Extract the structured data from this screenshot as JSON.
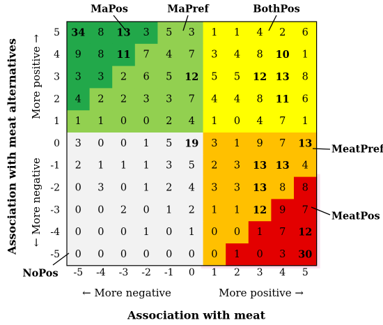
{
  "chart_data": {
    "type": "heatmap",
    "x_values": [
      -5,
      -4,
      -3,
      -2,
      -1,
      0,
      1,
      2,
      3,
      4,
      5
    ],
    "y_values": [
      5,
      4,
      3,
      2,
      1,
      0,
      -1,
      -2,
      -3,
      -4,
      -5
    ],
    "xlabel": "Association with meat",
    "ylabel": "Association with meat alternatives",
    "x_direction_labels": {
      "negative": "← More negative",
      "positive": "More positive →"
    },
    "y_direction_labels": {
      "negative": "← More negative",
      "positive": "More positive →"
    },
    "values": [
      [
        34,
        8,
        13,
        3,
        5,
        3,
        1,
        1,
        4,
        2,
        6
      ],
      [
        9,
        8,
        11,
        7,
        4,
        7,
        3,
        4,
        8,
        10,
        1
      ],
      [
        3,
        3,
        2,
        6,
        5,
        12,
        5,
        5,
        12,
        13,
        8
      ],
      [
        4,
        2,
        2,
        3,
        3,
        7,
        4,
        4,
        8,
        11,
        6
      ],
      [
        1,
        1,
        0,
        0,
        2,
        4,
        1,
        0,
        4,
        7,
        1
      ],
      [
        3,
        0,
        0,
        1,
        5,
        19,
        3,
        1,
        9,
        7,
        13
      ],
      [
        2,
        1,
        1,
        1,
        3,
        5,
        2,
        3,
        13,
        13,
        4
      ],
      [
        0,
        3,
        0,
        1,
        2,
        4,
        3,
        3,
        13,
        8,
        8
      ],
      [
        0,
        0,
        2,
        0,
        1,
        2,
        1,
        1,
        12,
        9,
        7
      ],
      [
        0,
        0,
        0,
        1,
        0,
        1,
        0,
        0,
        1,
        7,
        12
      ],
      [
        0,
        0,
        0,
        0,
        0,
        0,
        0,
        1,
        0,
        3,
        30
      ]
    ],
    "bold_values": [
      [
        true,
        false,
        true,
        false,
        false,
        false,
        false,
        false,
        false,
        false,
        false
      ],
      [
        false,
        false,
        true,
        false,
        false,
        false,
        false,
        false,
        false,
        true,
        false
      ],
      [
        false,
        false,
        false,
        false,
        false,
        true,
        false,
        false,
        true,
        true,
        false
      ],
      [
        false,
        false,
        false,
        false,
        false,
        false,
        false,
        false,
        false,
        true,
        false
      ],
      [
        false,
        false,
        false,
        false,
        false,
        false,
        false,
        false,
        false,
        false,
        false
      ],
      [
        false,
        false,
        false,
        false,
        false,
        true,
        false,
        false,
        false,
        false,
        true
      ],
      [
        false,
        false,
        false,
        false,
        false,
        false,
        false,
        false,
        true,
        true,
        false
      ],
      [
        false,
        false,
        false,
        false,
        false,
        false,
        false,
        false,
        true,
        false,
        false
      ],
      [
        false,
        false,
        false,
        false,
        false,
        false,
        false,
        false,
        true,
        false,
        false
      ],
      [
        false,
        false,
        false,
        false,
        false,
        false,
        false,
        false,
        false,
        false,
        true
      ],
      [
        false,
        false,
        false,
        false,
        false,
        false,
        false,
        false,
        false,
        false,
        true
      ]
    ],
    "zones": [
      {
        "name": "MaPos",
        "color": "#22a84a"
      },
      {
        "name": "MaPref",
        "color": "#92d050"
      },
      {
        "name": "BothPos",
        "color": "#ffff00"
      },
      {
        "name": "MeatPref",
        "color": "#ffc000"
      },
      {
        "name": "MeatPos",
        "color": "#e30000"
      },
      {
        "name": "NoPos",
        "color": "#f2f2f2"
      }
    ],
    "zone_cells": [
      [
        "MaPos",
        "MaPos",
        "MaPos",
        "MaPos",
        "MaPref",
        "MaPref",
        "BothPos",
        "BothPos",
        "BothPos",
        "BothPos",
        "BothPos"
      ],
      [
        "MaPos",
        "MaPos",
        "MaPos",
        "MaPref",
        "MaPref",
        "MaPref",
        "BothPos",
        "BothPos",
        "BothPos",
        "BothPos",
        "BothPos"
      ],
      [
        "MaPos",
        "MaPos",
        "MaPref",
        "MaPref",
        "MaPref",
        "MaPref",
        "BothPos",
        "BothPos",
        "BothPos",
        "BothPos",
        "BothPos"
      ],
      [
        "MaPos",
        "MaPref",
        "MaPref",
        "MaPref",
        "MaPref",
        "MaPref",
        "BothPos",
        "BothPos",
        "BothPos",
        "BothPos",
        "BothPos"
      ],
      [
        "MaPref",
        "MaPref",
        "MaPref",
        "MaPref",
        "MaPref",
        "MaPref",
        "BothPos",
        "BothPos",
        "BothPos",
        "BothPos",
        "BothPos"
      ],
      [
        "NoPos",
        "NoPos",
        "NoPos",
        "NoPos",
        "NoPos",
        "NoPos",
        "MeatPref",
        "MeatPref",
        "MeatPref",
        "MeatPref",
        "MeatPref"
      ],
      [
        "NoPos",
        "NoPos",
        "NoPos",
        "NoPos",
        "NoPos",
        "NoPos",
        "MeatPref",
        "MeatPref",
        "MeatPref",
        "MeatPref",
        "MeatPref"
      ],
      [
        "NoPos",
        "NoPos",
        "NoPos",
        "NoPos",
        "NoPos",
        "NoPos",
        "MeatPref",
        "MeatPref",
        "MeatPref",
        "MeatPref",
        "MeatPos"
      ],
      [
        "NoPos",
        "NoPos",
        "NoPos",
        "NoPos",
        "NoPos",
        "NoPos",
        "MeatPref",
        "MeatPref",
        "MeatPref",
        "MeatPos",
        "MeatPos"
      ],
      [
        "NoPos",
        "NoPos",
        "NoPos",
        "NoPos",
        "NoPos",
        "NoPos",
        "MeatPref",
        "MeatPref",
        "MeatPos",
        "MeatPos",
        "MeatPos"
      ],
      [
        "NoPos",
        "NoPos",
        "NoPos",
        "NoPos",
        "NoPos",
        "NoPos",
        "MeatPref",
        "MeatPos",
        "MeatPos",
        "MeatPos",
        "MeatPos"
      ]
    ],
    "annotations": [
      "MaPos",
      "MaPref",
      "BothPos",
      "MeatPref",
      "MeatPos",
      "NoPos"
    ],
    "grid": false,
    "legend": "none"
  }
}
